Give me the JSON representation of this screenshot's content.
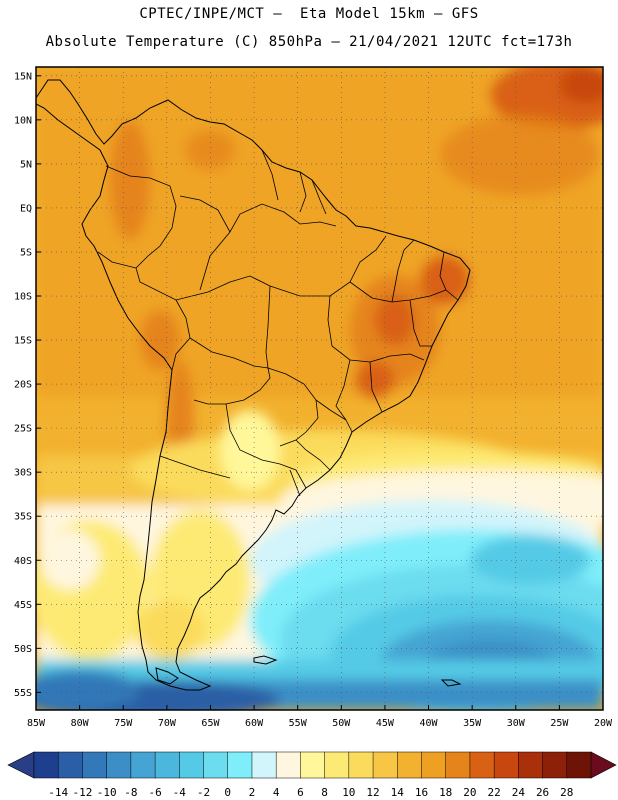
{
  "header": {
    "line1": "CPTEC/INPE/MCT –  Eta Model 15km – GFS",
    "line2": "Absolute Temperature (C) 850hPa – 21/04/2021 12UTC fct=173h"
  },
  "map": {
    "lon_ticks": [
      "85W",
      "80W",
      "75W",
      "70W",
      "65W",
      "60W",
      "55W",
      "50W",
      "45W",
      "40W",
      "35W",
      "30W",
      "25W",
      "20W"
    ],
    "lat_ticks": [
      "15N",
      "10N",
      "5N",
      "EQ",
      "5S",
      "10S",
      "15S",
      "20S",
      "25S",
      "30S",
      "35S",
      "40S",
      "45S",
      "50S",
      "55S"
    ],
    "lon_range": [
      -85,
      -20
    ],
    "lat_range": [
      -57,
      16
    ],
    "grid": "dotted"
  },
  "colorbar": {
    "ticks": [
      "-14",
      "-12",
      "-10",
      "-8",
      "-6",
      "-4",
      "-2",
      "0",
      "2",
      "4",
      "6",
      "8",
      "10",
      "12",
      "14",
      "16",
      "18",
      "20",
      "22",
      "24",
      "26",
      "28"
    ],
    "colors": [
      "#1e3f8e",
      "#2a5ea6",
      "#3378b8",
      "#3b8fc6",
      "#45a4d3",
      "#4cb7dd",
      "#55cae6",
      "#6cdcef",
      "#7feefa",
      "#d2f4fb",
      "#fff6df",
      "#fff79a",
      "#fdea75",
      "#fbdb5c",
      "#f6c644",
      "#f2b12e",
      "#eda022",
      "#e5841b",
      "#d96113",
      "#c8470f",
      "#a9300b",
      "#8c2008",
      "#6e1406"
    ],
    "under_color": "#2a3e86",
    "over_color": "#6b0b1e"
  }
}
